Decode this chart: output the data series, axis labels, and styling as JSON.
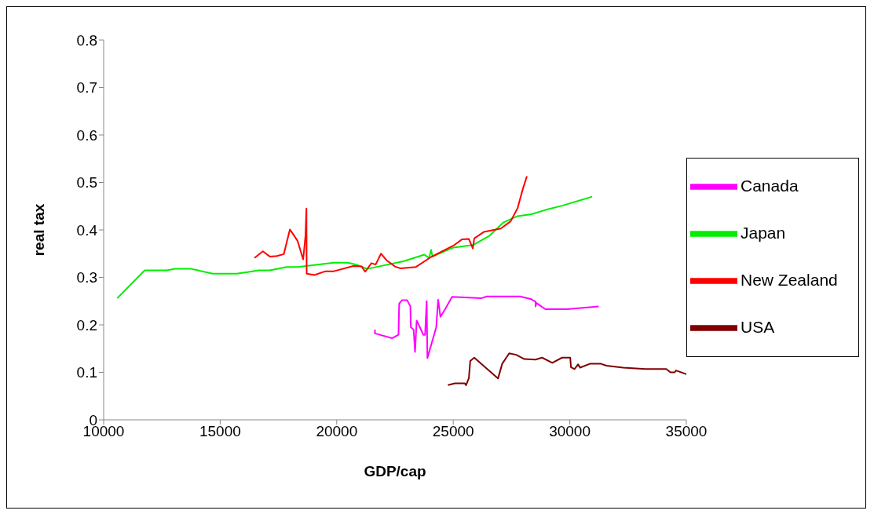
{
  "chart_data": {
    "type": "line",
    "xlabel": "GDP/cap",
    "ylabel": "real tax",
    "xlim": [
      10000,
      35000
    ],
    "xticks": [
      10000,
      15000,
      20000,
      25000,
      30000,
      35000
    ],
    "ylim": [
      0,
      0.8
    ],
    "yticks": [
      0,
      0.1,
      0.2,
      0.3,
      0.4,
      0.5,
      0.6,
      0.7,
      0.8
    ],
    "grid": false,
    "legend": "right",
    "marker": "none",
    "line_style": "solid",
    "series": [
      {
        "name": "Canada",
        "color": "#ff00ff",
        "x": [
          21640,
          21640,
          22380,
          22650,
          22680,
          22800,
          23020,
          23160,
          23180,
          23300,
          23360,
          23430,
          23540,
          23720,
          23790,
          23860,
          23890,
          24270,
          24350,
          24450,
          24650,
          24950,
          26200,
          26440,
          27870,
          28350,
          28530,
          28530,
          28570,
          28950,
          29900,
          31240
        ],
        "values": [
          0.19,
          0.182,
          0.172,
          0.179,
          0.245,
          0.252,
          0.252,
          0.239,
          0.195,
          0.19,
          0.143,
          0.209,
          0.198,
          0.179,
          0.179,
          0.25,
          0.13,
          0.195,
          0.253,
          0.217,
          0.233,
          0.259,
          0.256,
          0.26,
          0.26,
          0.254,
          0.249,
          0.239,
          0.246,
          0.233,
          0.233,
          0.239
        ]
      },
      {
        "name": "Japan",
        "color": "#00ee00",
        "x": [
          10580,
          11760,
          12710,
          13070,
          13760,
          14680,
          15700,
          16170,
          16650,
          17130,
          17850,
          18320,
          19880,
          20470,
          20830,
          21250,
          21310,
          22860,
          23760,
          23960,
          24050,
          24110,
          25010,
          25840,
          26560,
          27160,
          27760,
          28350,
          28950,
          29670,
          30960
        ],
        "values": [
          0.256,
          0.315,
          0.315,
          0.318,
          0.318,
          0.308,
          0.308,
          0.311,
          0.315,
          0.315,
          0.322,
          0.322,
          0.331,
          0.331,
          0.327,
          0.319,
          0.318,
          0.334,
          0.348,
          0.341,
          0.358,
          0.344,
          0.363,
          0.368,
          0.388,
          0.416,
          0.429,
          0.433,
          0.442,
          0.451,
          0.47
        ]
      },
      {
        "name": "New Zealand",
        "color": "#ff0000",
        "x": [
          16470,
          16830,
          17130,
          17430,
          17730,
          17990,
          18320,
          18560,
          18660,
          18700,
          18710,
          19040,
          19520,
          19880,
          20710,
          21070,
          21220,
          21490,
          21670,
          21900,
          22140,
          22500,
          22740,
          23400,
          24050,
          25010,
          25370,
          25670,
          25840,
          25900,
          26320,
          27040,
          27460,
          27760,
          27990,
          28160
        ],
        "values": [
          0.341,
          0.355,
          0.344,
          0.345,
          0.349,
          0.401,
          0.377,
          0.338,
          0.388,
          0.445,
          0.308,
          0.305,
          0.313,
          0.313,
          0.324,
          0.323,
          0.312,
          0.33,
          0.327,
          0.35,
          0.336,
          0.323,
          0.319,
          0.322,
          0.343,
          0.367,
          0.38,
          0.381,
          0.361,
          0.382,
          0.396,
          0.403,
          0.418,
          0.446,
          0.487,
          0.513
        ]
      },
      {
        "name": "USA",
        "color": "#800000",
        "x": [
          24770,
          25070,
          25490,
          25550,
          25670,
          25730,
          25900,
          26920,
          27100,
          27400,
          27700,
          28050,
          28530,
          28810,
          29250,
          29670,
          30020,
          30050,
          30200,
          30360,
          30440,
          30860,
          31340,
          31570,
          32290,
          33250,
          34140,
          34320,
          34500,
          34560,
          35000
        ],
        "values": [
          0.073,
          0.077,
          0.077,
          0.073,
          0.088,
          0.124,
          0.131,
          0.087,
          0.118,
          0.14,
          0.137,
          0.128,
          0.127,
          0.131,
          0.12,
          0.131,
          0.131,
          0.111,
          0.107,
          0.117,
          0.11,
          0.118,
          0.118,
          0.114,
          0.11,
          0.107,
          0.107,
          0.1,
          0.1,
          0.104,
          0.096
        ]
      }
    ]
  }
}
